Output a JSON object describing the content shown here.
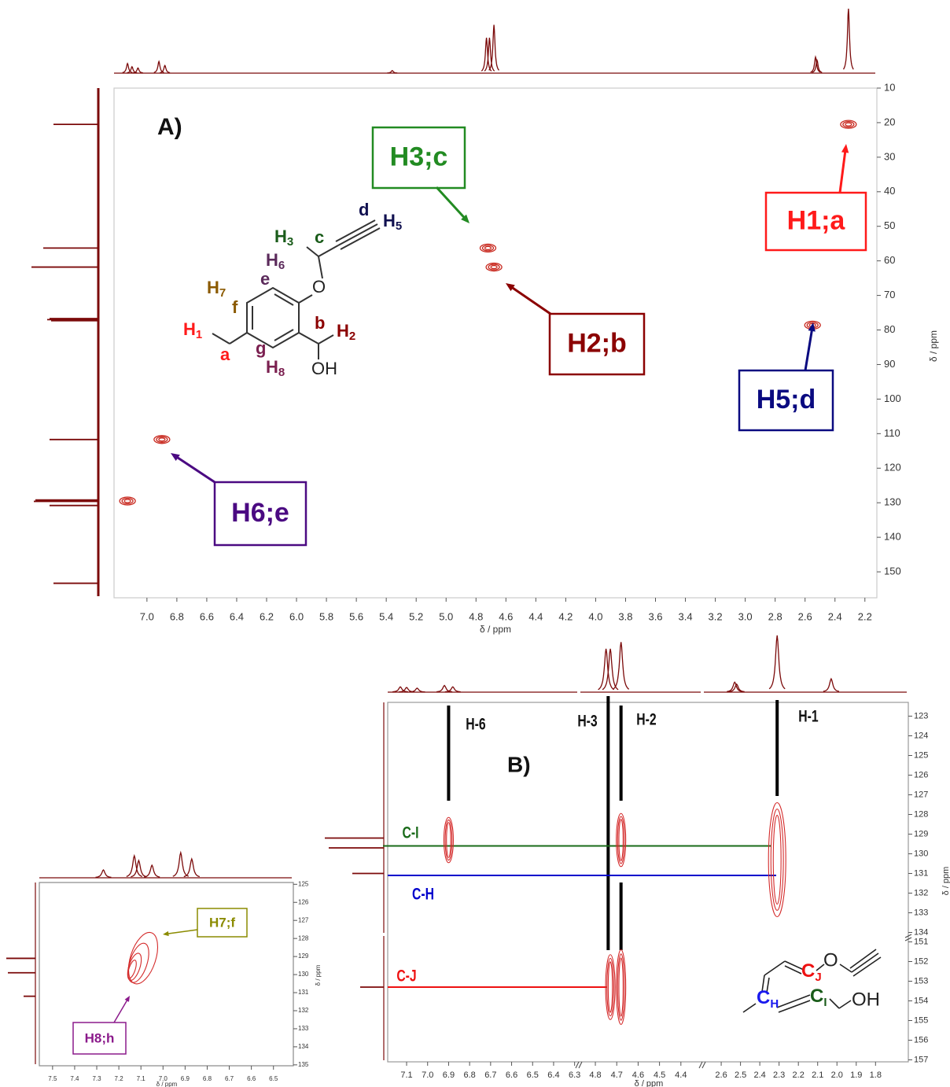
{
  "chart_data": [
    {
      "type": "hsqc",
      "panel_label": "A)",
      "x_label": "δ / ppm",
      "y_label": "δ / ppm",
      "xlim": [
        7.22,
        2.12
      ],
      "ylim": [
        10,
        157.5
      ],
      "xticks": [
        {
          "value": 7,
          "label": "7.0"
        },
        6.8,
        6.6,
        6.4,
        6.2,
        {
          "value": 6,
          "label": "6.0"
        },
        5.8,
        5.6,
        5.4,
        5.2,
        {
          "value": 5,
          "label": "5.0"
        },
        4.8,
        4.6,
        4.4,
        4.2,
        {
          "value": 4,
          "label": "4.0"
        },
        3.8,
        3.6,
        3.4,
        3.2,
        {
          "value": 3,
          "label": "3.0"
        },
        2.8,
        2.6,
        2.4,
        2.2
      ],
      "yticks": [
        10,
        20,
        30,
        40,
        50,
        60,
        70,
        80,
        90,
        100,
        110,
        120,
        130,
        140,
        150
      ],
      "cross_peaks": {
        "x": [
          7.13,
          6.9,
          4.72,
          4.68,
          2.55,
          2.31
        ],
        "y": [
          129.5,
          111.7,
          56.3,
          61.8,
          78.6,
          20.5
        ]
      },
      "contour_color": "#c8281e",
      "trace_color": "#7b0a0a",
      "projection_top": {
        "x": [
          7.13,
          7.1,
          7.06,
          6.92,
          6.88,
          5.36,
          4.73,
          4.71,
          4.68,
          2.53,
          2.52,
          2.31
        ],
        "values": [
          15,
          10,
          8,
          18,
          12,
          4,
          55,
          55,
          75,
          25,
          20,
          100
        ]
      },
      "projection_left": {
        "y": [
          20.5,
          56.3,
          61.8,
          76.7,
          77,
          77.3,
          111.7,
          129.2,
          129.6,
          130.8,
          153.3
        ],
        "values": [
          57,
          70,
          85,
          62,
          65,
          60,
          62,
          80,
          82,
          62,
          57
        ]
      },
      "annotations": [
        {
          "text": "H3;c",
          "color": "#228b22"
        },
        {
          "text": "H1;a",
          "color": "#ff1a1a"
        },
        {
          "text": "H2;b",
          "color": "#8b0000"
        },
        {
          "text": "H5;d",
          "color": "#0a0a80"
        },
        {
          "text": "H6;e",
          "color": "#4b0a82"
        }
      ],
      "structure_labels": [
        "H",
        "1",
        "a",
        "H",
        "7",
        "f",
        "e",
        "H",
        "6",
        "g",
        "H",
        "8",
        "b",
        "H",
        "2",
        "OH",
        "O",
        "c",
        "H",
        "3",
        "d",
        "H",
        "5"
      ]
    },
    {
      "type": "hmbc",
      "panel_label": "B)",
      "x_label": "δ / ppm",
      "y_label": "δ / ppm",
      "x_segments": [
        {
          "xlim": [
            7.19,
            6.28
          ],
          "xticks": [
            7.1,
            {
              "value": 7,
              "label": "7.0"
            },
            6.9,
            6.8,
            6.7,
            6.6,
            6.5,
            6.4,
            6.3
          ]
        },
        {
          "xlim": [
            4.87,
            4.3
          ],
          "xticks": [
            4.8,
            4.7,
            4.6,
            4.5,
            4.4
          ]
        },
        {
          "xlim": [
            2.69,
            1.63
          ],
          "xticks": [
            2.6,
            2.5,
            2.4,
            2.3,
            2.2,
            2.1,
            {
              "value": 2,
              "label": "2.0"
            },
            1.9,
            1.8
          ]
        }
      ],
      "y_segments": [
        {
          "ylim": [
            122.3,
            134.1
          ],
          "yticks": [
            123,
            124,
            125,
            126,
            127,
            128,
            129,
            130,
            131,
            132,
            133,
            134
          ]
        },
        {
          "ylim": [
            150.7,
            157.1
          ],
          "yticks": [
            151,
            152,
            153,
            154,
            155,
            156,
            157
          ]
        }
      ],
      "cross_peaks": {
        "x": [
          6.9,
          4.68,
          2.31,
          4.73,
          4.68
        ],
        "y": [
          129.3,
          129.3,
          130.3,
          153.3,
          153.3
        ],
        "y_extent": [
          2.3,
          2.7,
          5.8,
          3.3,
          3.8
        ]
      },
      "contour_color": "#d42a2a",
      "trace_color": "#7b0a0a",
      "projection_top": {
        "x": [
          7.13,
          7.1,
          7.05,
          6.92,
          6.88,
          4.75,
          4.73,
          4.68,
          2.53,
          2.52,
          2.31,
          2.03
        ],
        "values": [
          8,
          7,
          6,
          10,
          8,
          65,
          65,
          75,
          15,
          12,
          85,
          20
        ]
      },
      "projection_left": {
        "y": [
          129.2,
          129.7,
          131,
          153.3
        ],
        "values": [
          75,
          70,
          40,
          30
        ]
      },
      "proton_lines": {
        "labels": [
          "H-6",
          "H-3",
          "H-2",
          "H-1"
        ],
        "x": [
          6.9,
          4.74,
          4.68,
          2.31
        ]
      },
      "carbon_lines": {
        "labels": [
          "C-I",
          "C-H",
          "C-J"
        ],
        "y": [
          129.6,
          131.1,
          153.3
        ],
        "colors": [
          "#1a6b1a",
          "#0000cc",
          "#ee1111"
        ]
      },
      "structure_labels": [
        "C",
        "H",
        "C",
        "I",
        "C",
        "J",
        "O",
        "OH"
      ]
    },
    {
      "type": "hmbc-zoom",
      "x_label": "δ / ppm",
      "y_label": "δ / ppm",
      "xlim": [
        7.56,
        6.41
      ],
      "ylim": [
        124.9,
        135.05
      ],
      "xticks": [
        7.5,
        7.4,
        7.3,
        7.2,
        7.1,
        {
          "value": 7,
          "label": "7.0"
        },
        6.9,
        6.8,
        6.7,
        6.6,
        6.5
      ],
      "yticks": [
        125,
        126,
        127,
        128,
        129,
        130,
        131,
        132,
        133,
        134,
        135
      ],
      "cross_peaks": {
        "x": [
          7.14
        ],
        "y": [
          129.7
        ]
      },
      "contour_color": "#d42a2a",
      "trace_color": "#7b0a0a",
      "projection_top": {
        "x": [
          7.27,
          7.13,
          7.11,
          7.05,
          6.92,
          6.87
        ],
        "values": [
          10,
          28,
          22,
          16,
          32,
          24
        ]
      },
      "projection_left": {
        "y": [
          129.1,
          129.9,
          131.2
        ],
        "values": [
          37,
          35,
          15
        ]
      },
      "annotations": [
        {
          "text": "H7;f",
          "color": "#8b8b00"
        },
        {
          "text": "H8;h",
          "color": "#8b1a8b"
        }
      ]
    }
  ]
}
